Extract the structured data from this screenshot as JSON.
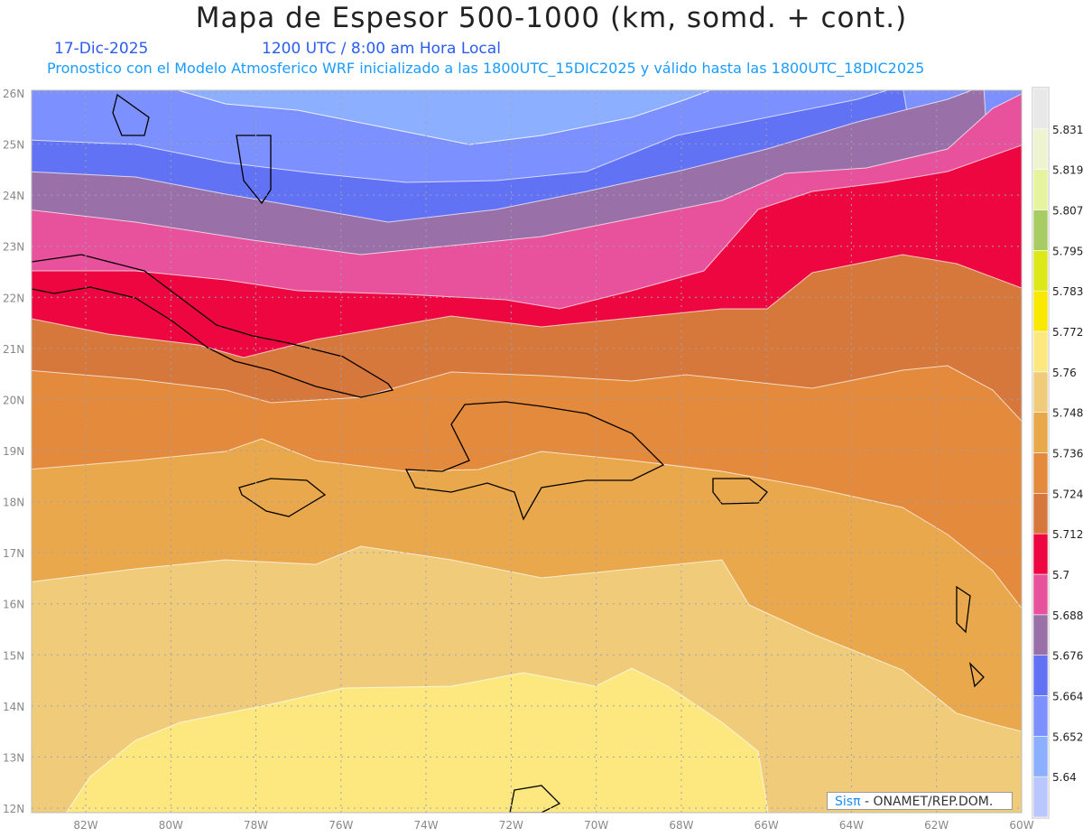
{
  "header": {
    "title": "Mapa de Espesor 500-1000 (km, somd. + cont.)",
    "date": "17-Dic-2025",
    "time": "1200 UTC / 8:00 am Hora Local",
    "info": "Pronostico con el Modelo Atmosferico WRF inicializado a las 1800UTC_15DIC2025 y válido hasta las  1800UTC_18DIC2025"
  },
  "map": {
    "lat_labels": [
      "12N",
      "13N",
      "14N",
      "15N",
      "16N",
      "17N",
      "18N",
      "19N",
      "20N",
      "21N",
      "22N",
      "23N",
      "24N",
      "25N",
      "26N"
    ],
    "lon_labels": [
      "82W",
      "80W",
      "78W",
      "76W",
      "74W",
      "72W",
      "70W",
      "68W",
      "66W",
      "64W",
      "62W",
      "60W"
    ]
  },
  "colorbar": {
    "colors": [
      "#b8c8ff",
      "#8cb0ff",
      "#7d90ff",
      "#6272f5",
      "#9a70a8",
      "#e8529c",
      "#ee0640",
      "#d6783c",
      "#e48a3c",
      "#e9a84c",
      "#f0cc7a",
      "#fde880",
      "#fbe800",
      "#dce818",
      "#a8cc64",
      "#e6f4a0",
      "#eef4d0",
      "#e8e8e8"
    ],
    "labels": [
      "5.64",
      "5.652",
      "5.664",
      "5.676",
      "5.688",
      "5.7",
      "5.712",
      "5.724",
      "5.736",
      "5.748",
      "5.76",
      "5.772",
      "5.783",
      "5.795",
      "5.807",
      "5.819",
      "5.831"
    ]
  },
  "credit": {
    "brand": "Sisπ",
    "text": " - ONAMET/REP.DOM."
  }
}
